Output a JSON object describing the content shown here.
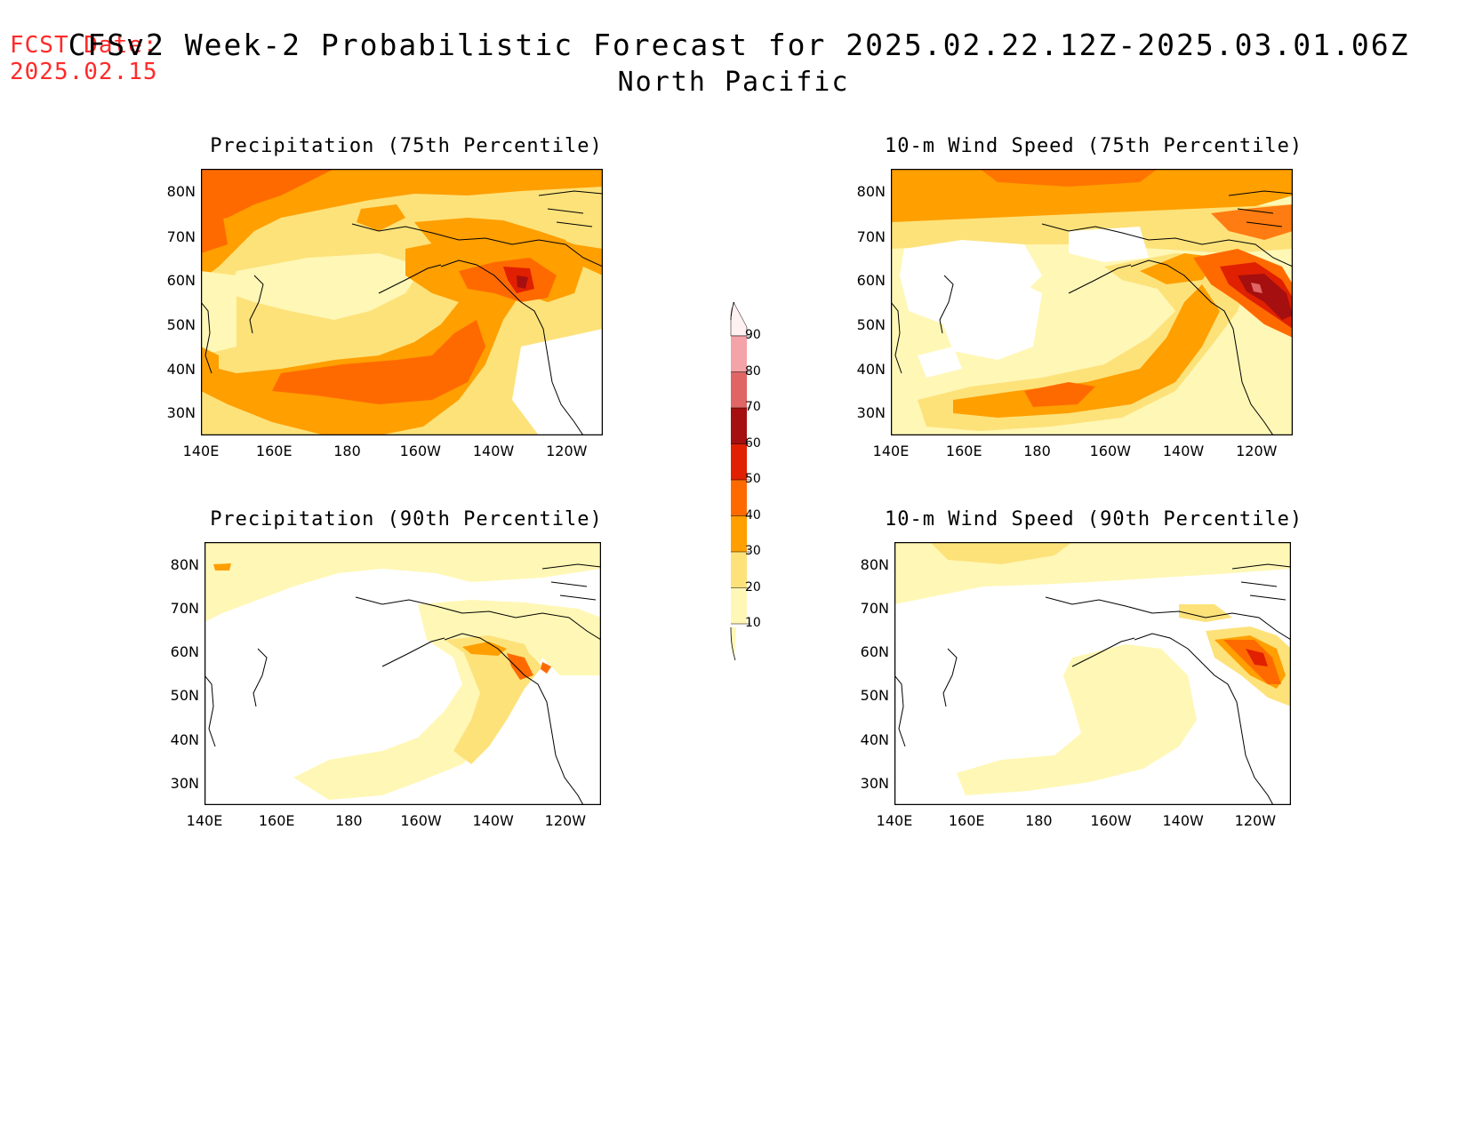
{
  "header": {
    "fcst_label": "FCST Date:",
    "fcst_date": "2025.02.15",
    "title_line1": "CFSv2 Week-2 Probabilistic Forecast for 2025.02.22.12Z-2025.03.01.06Z",
    "title_line2": "North Pacific"
  },
  "axes": {
    "lat_labels": [
      "80N",
      "70N",
      "60N",
      "50N",
      "40N",
      "30N"
    ],
    "lon_labels": [
      "140E",
      "160E",
      "180",
      "160W",
      "140W",
      "120W"
    ]
  },
  "panels": [
    {
      "id": "precip75",
      "title": "Precipitation (75th Percentile)"
    },
    {
      "id": "wind75",
      "title": "10-m Wind Speed (75th Percentile)"
    },
    {
      "id": "precip90",
      "title": "Precipitation (90th Percentile)"
    },
    {
      "id": "wind90",
      "title": "10-m Wind Speed (90th Percentile)"
    }
  ],
  "colorbar": {
    "levels": [
      "90",
      "80",
      "70",
      "60",
      "50",
      "40",
      "30",
      "20",
      "10"
    ],
    "colors": [
      "#fde2e4",
      "#f4a3a8",
      "#e06565",
      "#a50f0f",
      "#e02000",
      "#ff6a00",
      "#ff9f00",
      "#fde27a",
      "#fff7b5"
    ]
  },
  "palette": {
    "c10": "#fff7b5",
    "c20": "#fde27a",
    "c30": "#ff9f00",
    "c40": "#ff6a00",
    "c50": "#e02000",
    "c60": "#a50f0f",
    "c70": "#e06565",
    "title_red": "#ff2a2a"
  }
}
